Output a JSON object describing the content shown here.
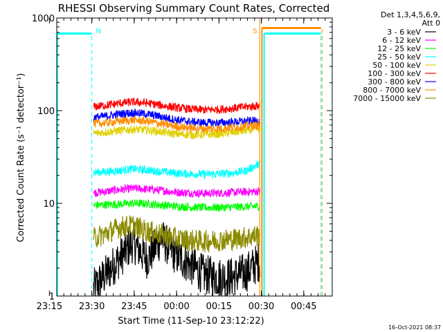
{
  "chart_data": {
    "type": "line",
    "title": "RHESSI Observing Summary Count Rates, Corrected",
    "xlabel": "Start Time (11-Sep-10 23:12:22)",
    "ylabel": "Corrected Count Rate (s⁻¹ detector⁻¹)",
    "ylog": true,
    "ylim": [
      1,
      1000
    ],
    "y_ticks": [
      {
        "value": 1,
        "label": "1"
      },
      {
        "value": 10,
        "label": "10"
      },
      {
        "value": 100,
        "label": "100"
      },
      {
        "value": 1000,
        "label": "1000"
      }
    ],
    "x_ticks": [
      {
        "label": "23:15",
        "minutes": -2.6
      },
      {
        "label": "23:30",
        "minutes": 12.4
      },
      {
        "label": "23:45",
        "minutes": 27.4
      },
      {
        "label": "00:00",
        "minutes": 42.4
      },
      {
        "label": "00:15",
        "minutes": 57.4
      },
      {
        "label": "00:30",
        "minutes": 72.4
      },
      {
        "label": "00:45",
        "minutes": 87.4
      }
    ],
    "xlim_minutes": [
      0,
      97.5
    ],
    "legend": {
      "placement": "right",
      "header": [
        "Det 1,3,4,5,6,9,",
        "Att 0"
      ]
    },
    "series": [
      {
        "name": "3 - 6 keV",
        "color": "#000000",
        "points": [
          [
            13,
            1.2
          ],
          [
            18,
            1.8
          ],
          [
            22,
            2.5
          ],
          [
            27,
            3.8
          ],
          [
            32,
            2.5
          ],
          [
            37,
            4.2
          ],
          [
            42,
            2.8
          ],
          [
            47,
            2.2
          ],
          [
            52,
            1.7
          ],
          [
            57,
            1.6
          ],
          [
            62,
            1.6
          ],
          [
            67,
            1.8
          ],
          [
            72,
            2.4
          ]
        ]
      },
      {
        "name": "6 - 12 keV",
        "color": "#ff00ff",
        "points": [
          [
            13,
            13
          ],
          [
            18,
            13.5
          ],
          [
            22,
            14
          ],
          [
            27,
            14.5
          ],
          [
            32,
            14.2
          ],
          [
            37,
            13.8
          ],
          [
            42,
            13.2
          ],
          [
            47,
            13
          ],
          [
            52,
            12.8
          ],
          [
            57,
            12.9
          ],
          [
            62,
            13.1
          ],
          [
            67,
            13.3
          ],
          [
            72,
            13.5
          ]
        ]
      },
      {
        "name": "12 - 25 keV",
        "color": "#00ff00",
        "points": [
          [
            13,
            9.5
          ],
          [
            18,
            9.7
          ],
          [
            22,
            9.8
          ],
          [
            27,
            10
          ],
          [
            32,
            9.9
          ],
          [
            37,
            9.6
          ],
          [
            42,
            9.3
          ],
          [
            47,
            9.1
          ],
          [
            52,
            9.0
          ],
          [
            57,
            9.0
          ],
          [
            62,
            9.1
          ],
          [
            67,
            9.2
          ],
          [
            72,
            9.3
          ]
        ]
      },
      {
        "name": "25 - 50 keV",
        "color": "#00ffff",
        "points": [
          [
            13,
            21.5
          ],
          [
            18,
            22
          ],
          [
            22,
            22.5
          ],
          [
            27,
            23.5
          ],
          [
            32,
            22.8
          ],
          [
            37,
            22
          ],
          [
            42,
            21.2
          ],
          [
            47,
            20.8
          ],
          [
            52,
            20.6
          ],
          [
            57,
            20.8
          ],
          [
            62,
            21.2
          ],
          [
            67,
            22.5
          ],
          [
            72,
            27
          ]
        ]
      },
      {
        "name": "50 - 100 keV",
        "color": "#e0d000",
        "points": [
          [
            13,
            57
          ],
          [
            18,
            59
          ],
          [
            22,
            61
          ],
          [
            27,
            63
          ],
          [
            32,
            62
          ],
          [
            37,
            59
          ],
          [
            42,
            56
          ],
          [
            47,
            55
          ],
          [
            52,
            55
          ],
          [
            57,
            56
          ],
          [
            62,
            58
          ],
          [
            67,
            61
          ],
          [
            72,
            64
          ]
        ]
      },
      {
        "name": "100 - 300 keV",
        "color": "#ff0000",
        "points": [
          [
            13,
            110
          ],
          [
            18,
            115
          ],
          [
            22,
            120
          ],
          [
            27,
            124
          ],
          [
            32,
            121
          ],
          [
            37,
            114
          ],
          [
            42,
            108
          ],
          [
            47,
            104
          ],
          [
            52,
            102
          ],
          [
            57,
            103
          ],
          [
            62,
            106
          ],
          [
            67,
            110
          ],
          [
            72,
            113
          ]
        ]
      },
      {
        "name": "300 - 800 keV",
        "color": "#0000ff",
        "points": [
          [
            13,
            84
          ],
          [
            18,
            88
          ],
          [
            22,
            92
          ],
          [
            27,
            95
          ],
          [
            32,
            92
          ],
          [
            37,
            86
          ],
          [
            42,
            80
          ],
          [
            47,
            76
          ],
          [
            52,
            74
          ],
          [
            57,
            74
          ],
          [
            62,
            75
          ],
          [
            67,
            77
          ],
          [
            72,
            78
          ]
        ]
      },
      {
        "name": "800 - 7000 keV",
        "color": "#ff8c00",
        "points": [
          [
            13,
            72
          ],
          [
            18,
            74
          ],
          [
            22,
            77
          ],
          [
            27,
            79
          ],
          [
            32,
            77
          ],
          [
            37,
            72
          ],
          [
            42,
            68
          ],
          [
            47,
            65
          ],
          [
            52,
            64
          ],
          [
            57,
            64
          ],
          [
            62,
            66
          ],
          [
            67,
            68
          ],
          [
            72,
            70
          ]
        ]
      },
      {
        "name": "7000 - 15000 keV",
        "color": "#8b8b00",
        "points": [
          [
            13,
            4.2
          ],
          [
            18,
            4.8
          ],
          [
            22,
            5.5
          ],
          [
            27,
            5.8
          ],
          [
            32,
            5.0
          ],
          [
            37,
            4.6
          ],
          [
            42,
            4.2
          ],
          [
            47,
            4.0
          ],
          [
            52,
            3.9
          ],
          [
            57,
            4.0
          ],
          [
            62,
            4.1
          ],
          [
            67,
            4.3
          ],
          [
            72,
            4.6
          ]
        ]
      }
    ],
    "annotations": [
      {
        "text": "N",
        "minutes": 12.4,
        "color": "#00ffff"
      },
      {
        "text": "S",
        "minutes": 71.8,
        "color": "#ff8c00"
      }
    ],
    "timestamp": "16-Oct-2021 08:37"
  }
}
